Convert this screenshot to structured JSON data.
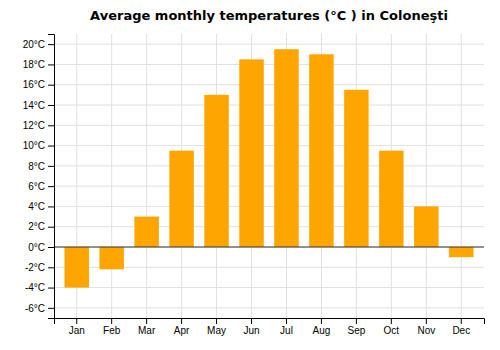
{
  "chart_data": {
    "type": "bar",
    "title": "Average monthly temperatures (°C ) in Coloneşti",
    "categories": [
      "Jan",
      "Feb",
      "Mar",
      "Apr",
      "May",
      "Jun",
      "Jul",
      "Aug",
      "Sep",
      "Oct",
      "Nov",
      "Dec"
    ],
    "values": [
      -4.0,
      -2.2,
      3.0,
      9.5,
      15.0,
      18.5,
      19.5,
      19.0,
      15.5,
      9.5,
      4.0,
      -1.0
    ],
    "color": "#FFA500",
    "ylim": [
      -7,
      21
    ],
    "yticks": [
      {
        "value": -6,
        "label": "-6°C"
      },
      {
        "value": -4,
        "label": "-4°C"
      },
      {
        "value": -2,
        "label": "-2°C"
      },
      {
        "value": 0,
        "label": "0°C"
      },
      {
        "value": 2,
        "label": "2°C"
      },
      {
        "value": 4,
        "label": "4°C"
      },
      {
        "value": 6,
        "label": "6°C"
      },
      {
        "value": 8,
        "label": "8°C"
      },
      {
        "value": 10,
        "label": "10°C"
      },
      {
        "value": 12,
        "label": "12°C"
      },
      {
        "value": 14,
        "label": "14°C"
      },
      {
        "value": 16,
        "label": "16°C"
      },
      {
        "value": 18,
        "label": "18°C"
      },
      {
        "value": 20,
        "label": "20°C"
      }
    ],
    "grid": true
  }
}
